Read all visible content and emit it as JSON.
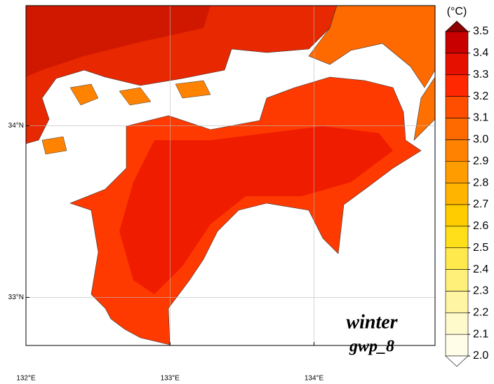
{
  "map": {
    "xlim": [
      132,
      134.84
    ],
    "ylim": [
      32.72,
      34.7
    ],
    "x_ticks": [
      {
        "value": 132,
        "label": "132°E"
      },
      {
        "value": 133,
        "label": "133°E"
      },
      {
        "value": 134,
        "label": "134°E"
      }
    ],
    "y_ticks": [
      {
        "value": 34,
        "label": "34°N"
      },
      {
        "value": 33,
        "label": "33°N"
      }
    ],
    "grid": true,
    "colorbar": {
      "unit": "(°C)",
      "ticks": [
        {
          "value": 2,
          "label": "2.0"
        },
        {
          "value": 2.1,
          "label": "2.1"
        },
        {
          "value": 2.2,
          "label": "2.2"
        },
        {
          "value": 2.3,
          "label": "2.3"
        },
        {
          "value": 2.4,
          "label": "2.4"
        },
        {
          "value": 2.5,
          "label": "2.5"
        },
        {
          "value": 2.6,
          "label": "2.6"
        },
        {
          "value": 2.7,
          "label": "2.7"
        },
        {
          "value": 2.8,
          "label": "2.8"
        },
        {
          "value": 2.9,
          "label": "2.9"
        },
        {
          "value": 3,
          "label": "3.0"
        },
        {
          "value": 3.1,
          "label": "3.1"
        },
        {
          "value": 3.2,
          "label": "3.2"
        },
        {
          "value": 3.3,
          "label": "3.3"
        },
        {
          "value": 3.4,
          "label": "3.4"
        },
        {
          "value": 3.5,
          "label": "3.5"
        }
      ],
      "colors": [
        "#fffde8",
        "#fffacc",
        "#fff5a3",
        "#fff07a",
        "#ffe94d",
        "#ffde1a",
        "#ffcc00",
        "#ffb400",
        "#ff9c00",
        "#ff8300",
        "#ff6a00",
        "#ff4e00",
        "#ff2800",
        "#e61000",
        "#c80000"
      ],
      "under_color": "#ffffff",
      "over_color": "#8c0000"
    },
    "annotations": {
      "season": "winter",
      "run": "gwp_8"
    }
  }
}
